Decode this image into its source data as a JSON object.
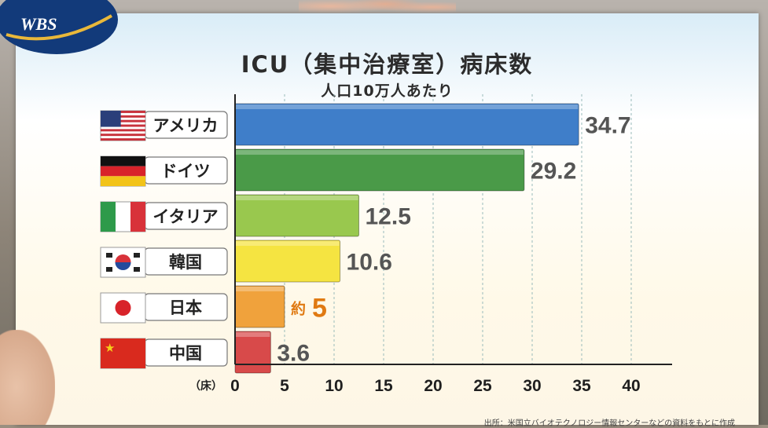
{
  "channel_logo": {
    "text": "WBS"
  },
  "chart_data": {
    "type": "bar",
    "orientation": "horizontal",
    "title": "ICU（集中治療室）病床数",
    "subtitle": "人口10万人あたり",
    "categories": [
      "アメリカ",
      "ドイツ",
      "イタリア",
      "韓国",
      "日本",
      "中国"
    ],
    "values": [
      34.7,
      29.2,
      12.5,
      10.6,
      5,
      3.6
    ],
    "value_labels": [
      "34.7",
      "29.2",
      "12.5",
      "10.6",
      "約5",
      "3.6"
    ],
    "bar_colors": [
      "#3f7ec9",
      "#4a9a48",
      "#99c84e",
      "#f5e441",
      "#f0a23c",
      "#d84a4a"
    ],
    "flag_icons": [
      "us-flag-icon",
      "germany-flag-icon",
      "italy-flag-icon",
      "korea-flag-icon",
      "japan-flag-icon",
      "china-flag-icon"
    ],
    "x_unit": "（床）",
    "x_ticks": [
      0,
      5,
      10,
      15,
      20,
      25,
      30,
      35,
      40
    ],
    "xlim": [
      0,
      40
    ],
    "grid": true,
    "source": "出所：米国立バイオテクノロジー情報センターなどの資料をもとに作成"
  }
}
